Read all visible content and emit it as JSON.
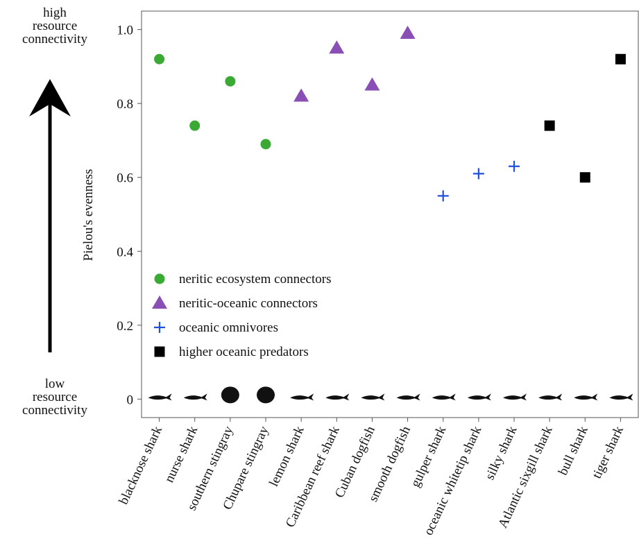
{
  "chart_data": {
    "type": "scatter",
    "y_label": "Pielou's evenness",
    "annotations": {
      "high": [
        "high",
        "resource",
        "connectivity"
      ],
      "low": [
        "low",
        "resource",
        "connectivity"
      ]
    },
    "categories": [
      "blacknose shark",
      "nurse shark",
      "southern stingray",
      "Chupare stingray",
      "lemon shark",
      "Caribbean reef shark",
      "Cuban dogfish",
      "smooth dogfish",
      "gulper shark",
      "oceanic whitetip shark",
      "silky shark",
      "Atlantic sixgill shark",
      "bull shark",
      "tiger shark"
    ],
    "series": [
      {
        "name": "neritic ecosystem connectors",
        "color": "#3aaa35",
        "marker": "circle",
        "values": [
          0.92,
          0.74,
          0.86,
          0.69,
          null,
          null,
          null,
          null,
          null,
          null,
          null,
          null,
          null,
          null
        ]
      },
      {
        "name": "neritic-oceanic connectors",
        "color": "#8a4fb5",
        "marker": "triangle",
        "values": [
          null,
          null,
          null,
          null,
          0.82,
          0.95,
          0.85,
          0.99,
          null,
          null,
          null,
          null,
          null,
          null
        ]
      },
      {
        "name": "oceanic omnivores",
        "color": "#1f4fe0",
        "marker": "plus",
        "values": [
          null,
          null,
          null,
          null,
          null,
          null,
          null,
          null,
          0.55,
          0.61,
          0.63,
          null,
          null,
          null
        ]
      },
      {
        "name": "higher oceanic predators",
        "color": "#000000",
        "marker": "square",
        "values": [
          null,
          null,
          null,
          null,
          null,
          null,
          null,
          null,
          null,
          null,
          null,
          0.74,
          0.6,
          0.92
        ]
      }
    ],
    "ylim": [
      -0.05,
      1.05
    ],
    "yticks": [
      0,
      0.2,
      0.4,
      0.6,
      0.8,
      {
        "value": 1,
        "label": "1.0"
      }
    ],
    "legend": "left"
  }
}
